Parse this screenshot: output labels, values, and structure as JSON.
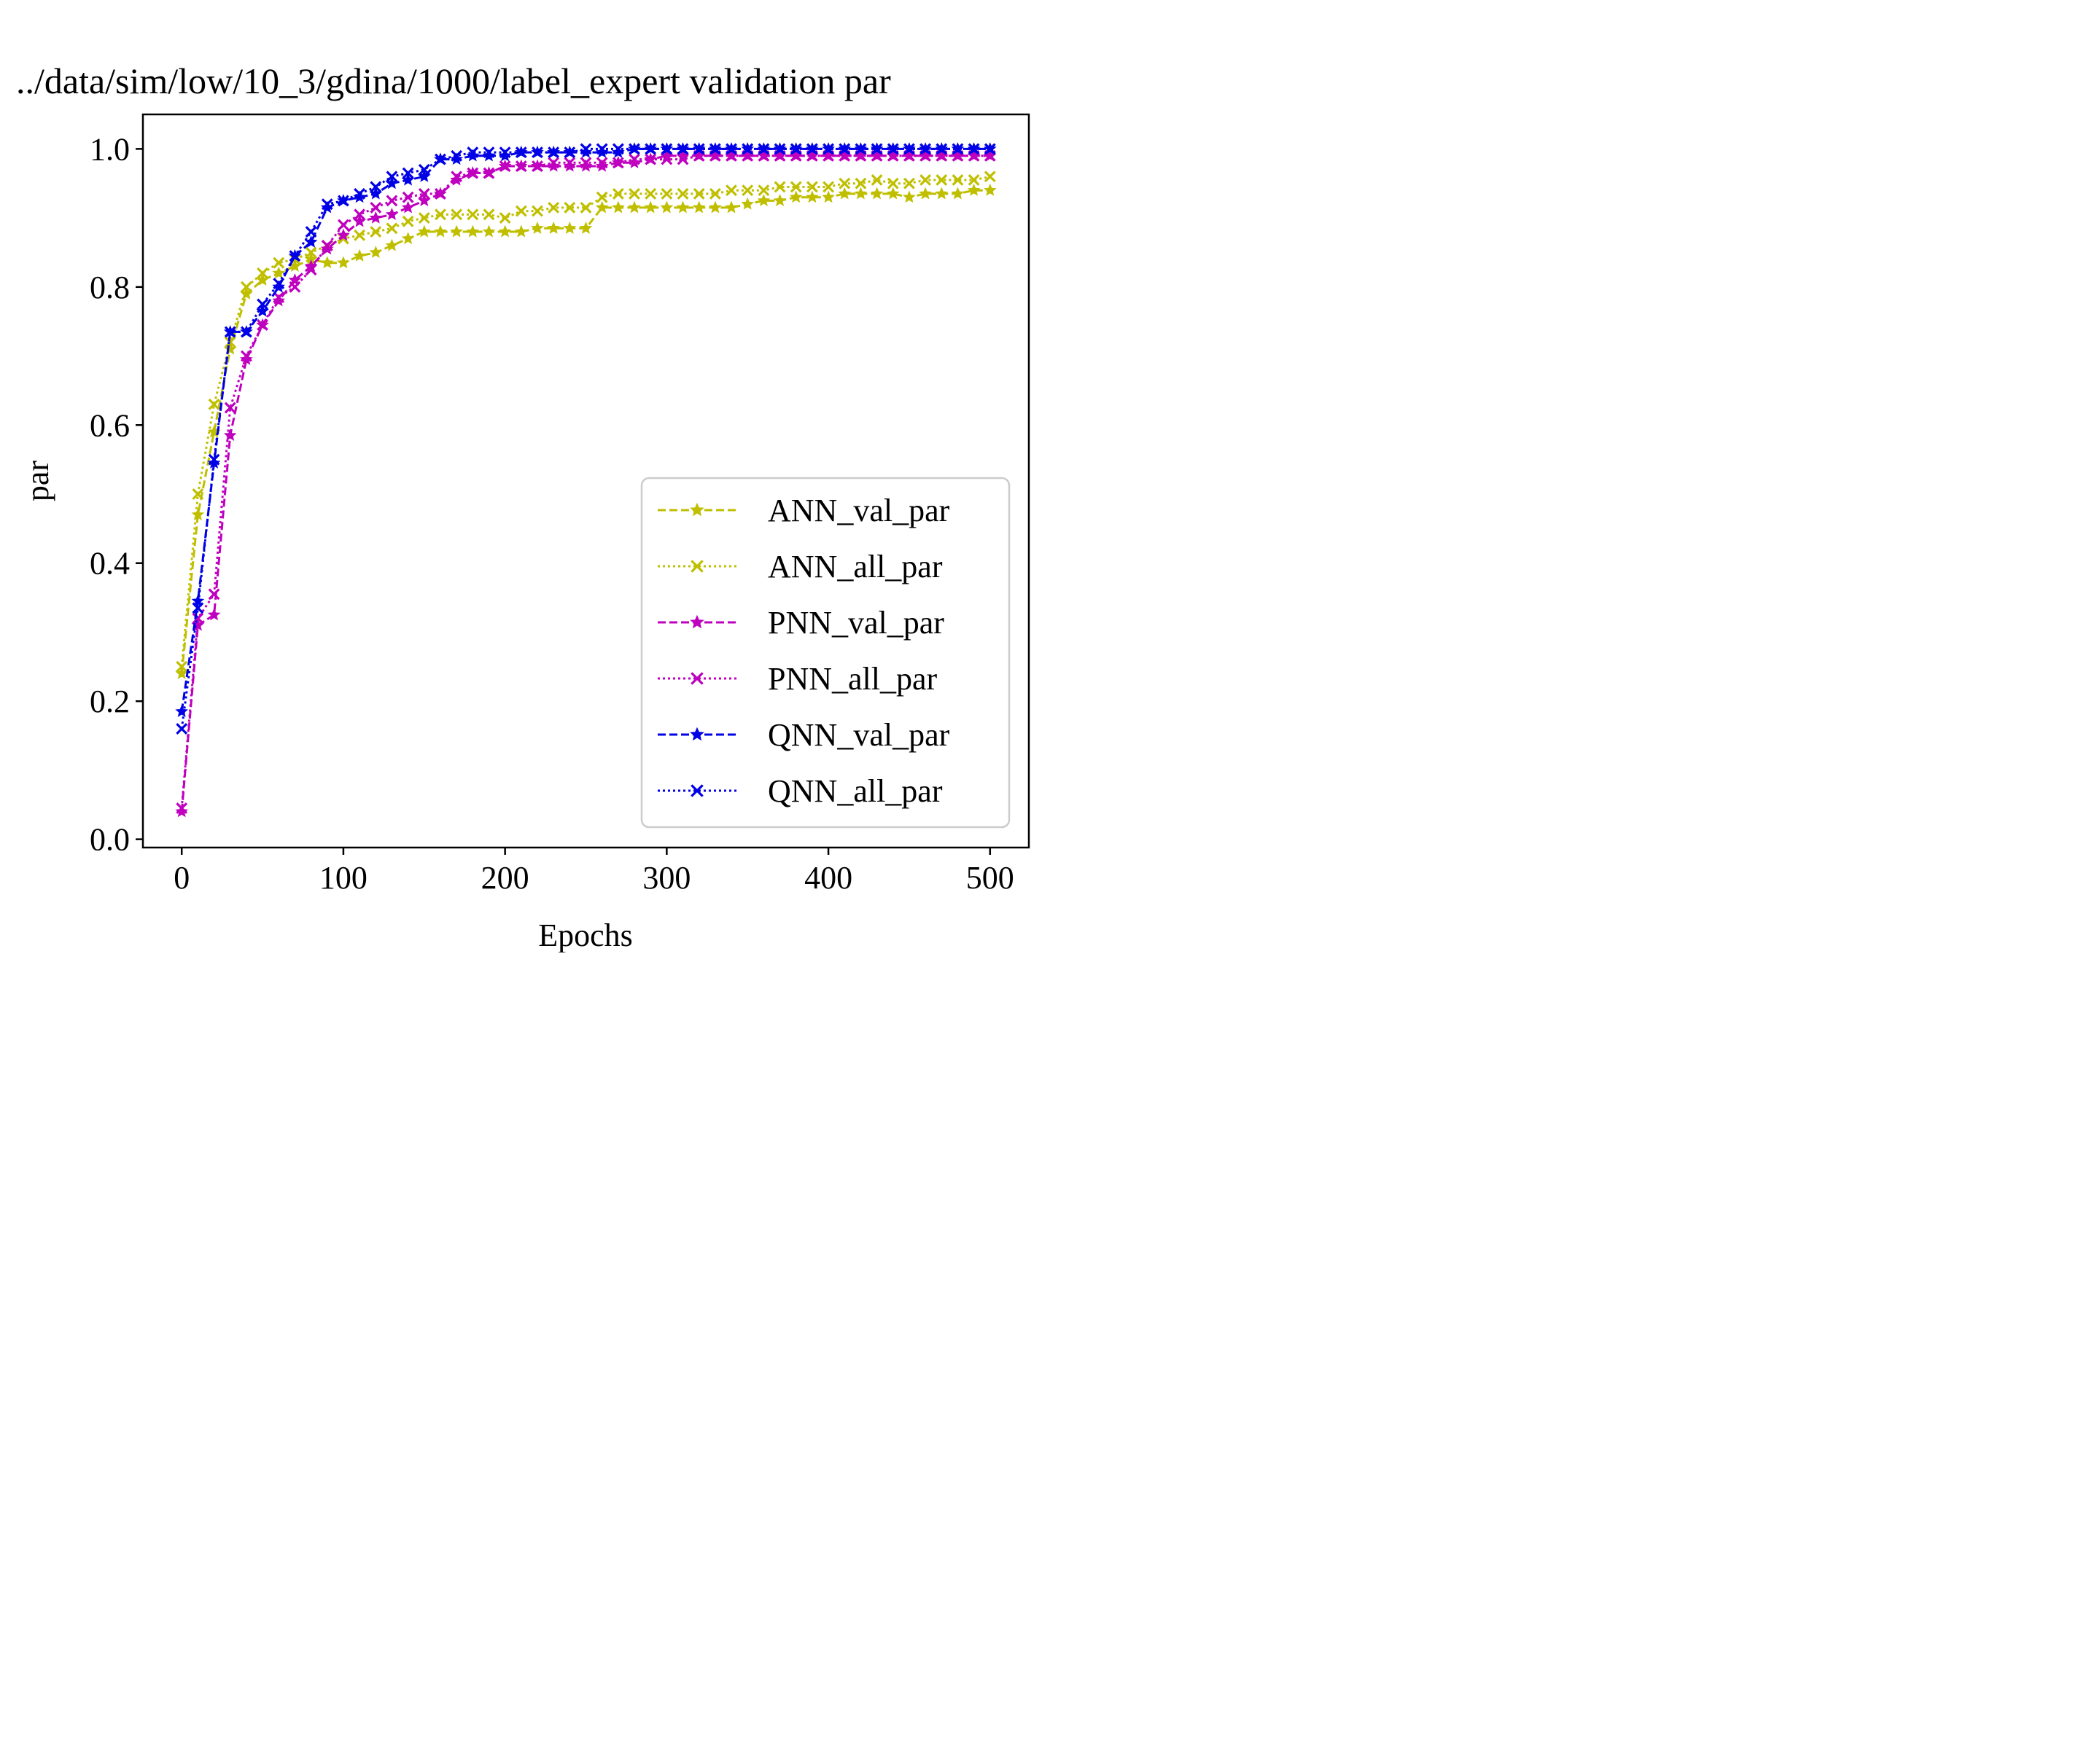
{
  "chart_data": {
    "type": "line",
    "title": "../data/sim/low/10_3/gdina/1000/label_expert validation par",
    "xlabel": "Epochs",
    "ylabel": "par",
    "xlim": [
      -24,
      524
    ],
    "ylim": [
      -0.012,
      1.05
    ],
    "xticks": [
      0,
      100,
      200,
      300,
      400,
      500
    ],
    "yticks": [
      0.0,
      0.2,
      0.4,
      0.6,
      0.8,
      1.0
    ],
    "xtick_labels": [
      "0",
      "100",
      "200",
      "300",
      "400",
      "500"
    ],
    "ytick_labels": [
      "0.0",
      "0.2",
      "0.4",
      "0.6",
      "0.8",
      "1.0"
    ],
    "grid": false,
    "legend_position": "lower right",
    "x": [
      0,
      10,
      20,
      30,
      40,
      50,
      60,
      70,
      80,
      90,
      100,
      110,
      120,
      130,
      140,
      150,
      160,
      170,
      180,
      190,
      200,
      210,
      220,
      230,
      240,
      250,
      260,
      270,
      280,
      290,
      300,
      310,
      320,
      330,
      340,
      350,
      360,
      370,
      380,
      390,
      400,
      410,
      420,
      430,
      440,
      450,
      460,
      470,
      480,
      490,
      500
    ],
    "series": [
      {
        "name": "ANN_val_par",
        "color": "#bfbf00",
        "linestyle": "dashed",
        "marker": "star",
        "values": [
          0.24,
          0.47,
          0.59,
          0.71,
          0.79,
          0.81,
          0.82,
          0.83,
          0.84,
          0.835,
          0.835,
          0.845,
          0.85,
          0.86,
          0.87,
          0.88,
          0.88,
          0.88,
          0.88,
          0.88,
          0.88,
          0.88,
          0.885,
          0.885,
          0.885,
          0.885,
          0.915,
          0.915,
          0.915,
          0.915,
          0.915,
          0.915,
          0.915,
          0.915,
          0.915,
          0.92,
          0.925,
          0.925,
          0.93,
          0.93,
          0.93,
          0.935,
          0.935,
          0.935,
          0.935,
          0.93,
          0.935,
          0.935,
          0.935,
          0.94,
          0.94
        ]
      },
      {
        "name": "ANN_all_par",
        "color": "#bfbf00",
        "linestyle": "dotted",
        "marker": "x",
        "values": [
          0.25,
          0.5,
          0.63,
          0.72,
          0.8,
          0.82,
          0.835,
          0.84,
          0.85,
          0.86,
          0.87,
          0.875,
          0.88,
          0.885,
          0.895,
          0.9,
          0.905,
          0.905,
          0.905,
          0.905,
          0.9,
          0.91,
          0.91,
          0.915,
          0.915,
          0.915,
          0.93,
          0.935,
          0.935,
          0.935,
          0.935,
          0.935,
          0.935,
          0.935,
          0.94,
          0.94,
          0.94,
          0.945,
          0.945,
          0.945,
          0.945,
          0.95,
          0.95,
          0.955,
          0.95,
          0.95,
          0.955,
          0.955,
          0.955,
          0.955,
          0.96
        ]
      },
      {
        "name": "PNN_val_par",
        "color": "#bf00bf",
        "linestyle": "dashed",
        "marker": "star",
        "values": [
          0.04,
          0.31,
          0.325,
          0.585,
          0.695,
          0.745,
          0.78,
          0.81,
          0.83,
          0.855,
          0.875,
          0.895,
          0.9,
          0.905,
          0.915,
          0.925,
          0.935,
          0.955,
          0.965,
          0.965,
          0.975,
          0.975,
          0.975,
          0.975,
          0.975,
          0.975,
          0.975,
          0.98,
          0.98,
          0.985,
          0.99,
          0.99,
          0.99,
          0.99,
          0.99,
          0.99,
          0.99,
          0.99,
          0.99,
          0.99,
          0.99,
          0.99,
          0.99,
          0.99,
          0.99,
          0.99,
          0.99,
          0.99,
          0.99,
          0.99,
          0.99
        ]
      },
      {
        "name": "PNN_all_par",
        "color": "#bf00bf",
        "linestyle": "dotted",
        "marker": "x",
        "values": [
          0.045,
          0.32,
          0.355,
          0.625,
          0.7,
          0.745,
          0.785,
          0.8,
          0.825,
          0.86,
          0.89,
          0.905,
          0.915,
          0.925,
          0.93,
          0.935,
          0.935,
          0.96,
          0.965,
          0.965,
          0.975,
          0.975,
          0.975,
          0.98,
          0.98,
          0.98,
          0.98,
          0.98,
          0.985,
          0.985,
          0.985,
          0.985,
          0.99,
          0.99,
          0.99,
          0.99,
          0.99,
          0.99,
          0.99,
          0.99,
          0.99,
          0.99,
          0.99,
          0.99,
          0.99,
          0.99,
          0.99,
          0.99,
          0.99,
          0.99,
          0.99
        ]
      },
      {
        "name": "QNN_val_par",
        "color": "#0000e6",
        "linestyle": "dashed",
        "marker": "star",
        "values": [
          0.185,
          0.345,
          0.545,
          0.735,
          0.735,
          0.765,
          0.8,
          0.845,
          0.865,
          0.915,
          0.925,
          0.93,
          0.935,
          0.95,
          0.955,
          0.96,
          0.985,
          0.985,
          0.99,
          0.99,
          0.99,
          0.995,
          0.995,
          0.995,
          0.995,
          0.995,
          0.995,
          0.995,
          1.0,
          1.0,
          1.0,
          1.0,
          1.0,
          1.0,
          1.0,
          1.0,
          1.0,
          1.0,
          1.0,
          1.0,
          1.0,
          1.0,
          1.0,
          1.0,
          1.0,
          1.0,
          1.0,
          1.0,
          1.0,
          1.0,
          1.0
        ]
      },
      {
        "name": "QNN_all_par",
        "color": "#0000e6",
        "linestyle": "dotted",
        "marker": "x",
        "values": [
          0.16,
          0.335,
          0.55,
          0.735,
          0.735,
          0.775,
          0.805,
          0.845,
          0.88,
          0.92,
          0.925,
          0.935,
          0.945,
          0.96,
          0.965,
          0.97,
          0.985,
          0.99,
          0.995,
          0.995,
          0.995,
          0.995,
          0.995,
          0.995,
          0.995,
          1.0,
          1.0,
          1.0,
          1.0,
          1.0,
          1.0,
          1.0,
          1.0,
          1.0,
          1.0,
          1.0,
          1.0,
          1.0,
          1.0,
          1.0,
          1.0,
          1.0,
          1.0,
          1.0,
          1.0,
          1.0,
          1.0,
          1.0,
          1.0,
          1.0,
          1.0
        ]
      }
    ]
  }
}
